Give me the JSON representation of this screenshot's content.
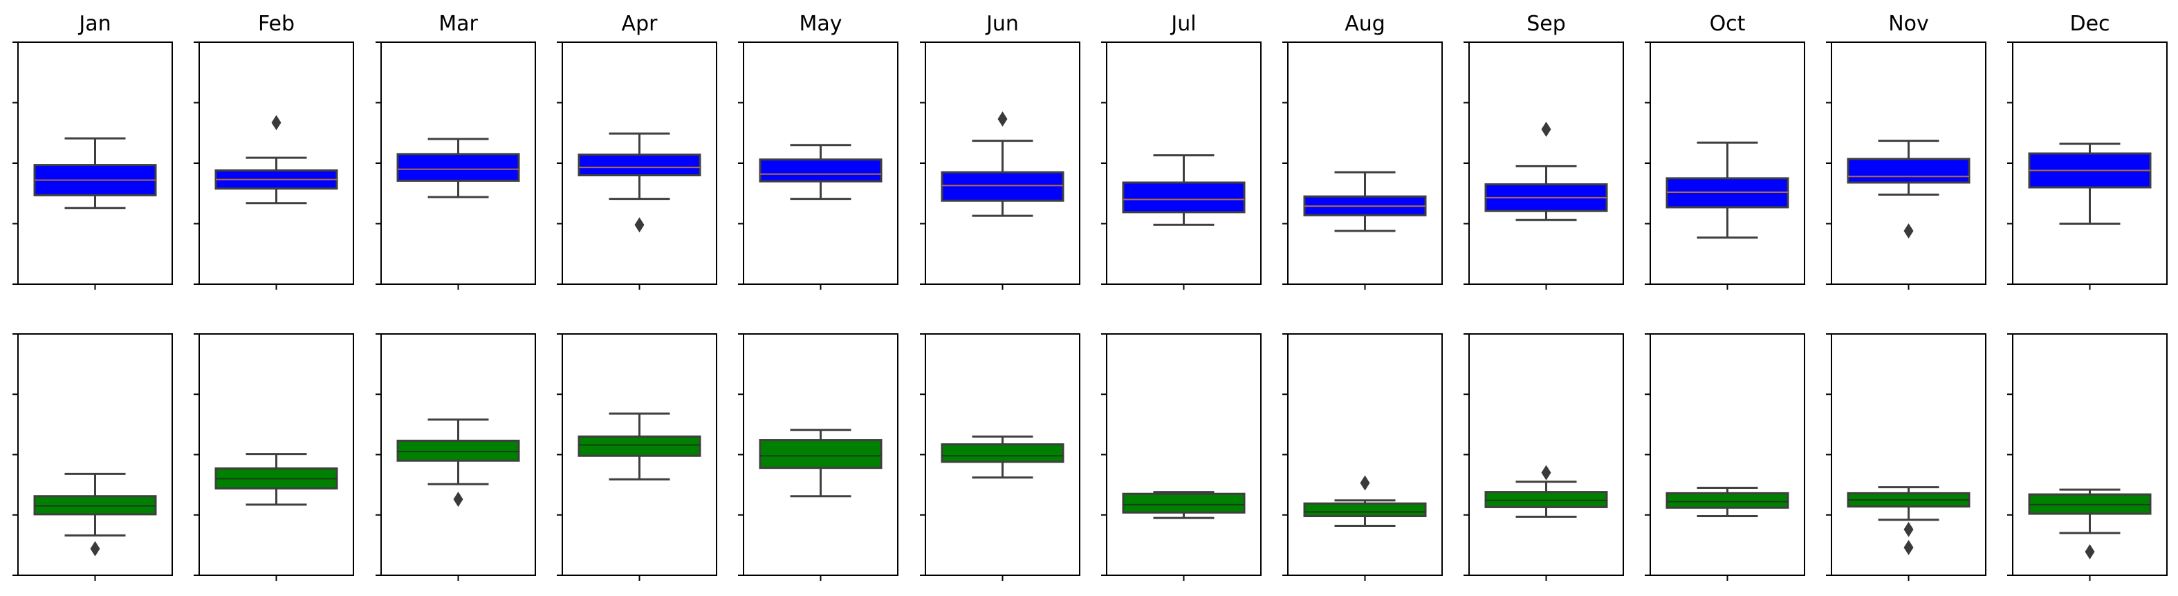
{
  "chart_data": {
    "type": "box",
    "layout": "2 rows x 12 columns (one column per month)",
    "months": [
      "Jan",
      "Feb",
      "Mar",
      "Apr",
      "May",
      "Jun",
      "Jul",
      "Aug",
      "Sep",
      "Oct",
      "Nov",
      "Dec"
    ],
    "y_tick_labels": "none",
    "x_tick_labels": "none",
    "ylim": [
      0,
      4
    ],
    "rows": [
      {
        "color": "#0000ff",
        "median_color": "#b06d3e",
        "boxes": [
          {
            "month": "Jan",
            "whisker_low": 1.26,
            "q1": 1.47,
            "median": 1.72,
            "q3": 1.97,
            "whisker_high": 2.41,
            "outliers": []
          },
          {
            "month": "Feb",
            "whisker_low": 1.34,
            "q1": 1.58,
            "median": 1.73,
            "q3": 1.88,
            "whisker_high": 2.09,
            "outliers": [
              2.67
            ]
          },
          {
            "month": "Mar",
            "whisker_low": 1.44,
            "q1": 1.71,
            "median": 1.9,
            "q3": 2.15,
            "whisker_high": 2.4,
            "outliers": []
          },
          {
            "month": "Apr",
            "whisker_low": 1.41,
            "q1": 1.8,
            "median": 1.93,
            "q3": 2.14,
            "whisker_high": 2.49,
            "outliers": [
              0.98
            ]
          },
          {
            "month": "May",
            "whisker_low": 1.41,
            "q1": 1.7,
            "median": 1.82,
            "q3": 2.06,
            "whisker_high": 2.3,
            "outliers": []
          },
          {
            "month": "Jun",
            "whisker_low": 1.13,
            "q1": 1.38,
            "median": 1.63,
            "q3": 1.85,
            "whisker_high": 2.37,
            "outliers": [
              2.73
            ]
          },
          {
            "month": "Jul",
            "whisker_low": 0.98,
            "q1": 1.19,
            "median": 1.4,
            "q3": 1.68,
            "whisker_high": 2.13,
            "outliers": []
          },
          {
            "month": "Aug",
            "whisker_low": 0.88,
            "q1": 1.14,
            "median": 1.29,
            "q3": 1.45,
            "whisker_high": 1.85,
            "outliers": []
          },
          {
            "month": "Sep",
            "whisker_low": 1.06,
            "q1": 1.21,
            "median": 1.43,
            "q3": 1.65,
            "whisker_high": 1.95,
            "outliers": [
              2.56
            ]
          },
          {
            "month": "Oct",
            "whisker_low": 0.77,
            "q1": 1.27,
            "median": 1.52,
            "q3": 1.75,
            "whisker_high": 2.34,
            "outliers": []
          },
          {
            "month": "Nov",
            "whisker_low": 1.48,
            "q1": 1.68,
            "median": 1.78,
            "q3": 2.07,
            "whisker_high": 2.37,
            "outliers": [
              0.88
            ]
          },
          {
            "month": "Dec",
            "whisker_low": 1.0,
            "q1": 1.6,
            "median": 1.88,
            "q3": 2.16,
            "whisker_high": 2.32,
            "outliers": []
          }
        ]
      },
      {
        "color": "#008000",
        "median_color": "#1a3d1a",
        "boxes": [
          {
            "month": "Jan",
            "whisker_low": 0.66,
            "q1": 1.01,
            "median": 1.15,
            "q3": 1.31,
            "whisker_high": 1.68,
            "outliers": [
              0.44
            ]
          },
          {
            "month": "Feb",
            "whisker_low": 1.17,
            "q1": 1.44,
            "median": 1.6,
            "q3": 1.77,
            "whisker_high": 2.01,
            "outliers": []
          },
          {
            "month": "Mar",
            "whisker_low": 1.51,
            "q1": 1.9,
            "median": 2.05,
            "q3": 2.23,
            "whisker_high": 2.58,
            "outliers": [
              1.26
            ]
          },
          {
            "month": "Apr",
            "whisker_low": 1.59,
            "q1": 1.98,
            "median": 2.16,
            "q3": 2.3,
            "whisker_high": 2.68,
            "outliers": []
          },
          {
            "month": "May",
            "whisker_low": 1.31,
            "q1": 1.78,
            "median": 1.98,
            "q3": 2.24,
            "whisker_high": 2.41,
            "outliers": []
          },
          {
            "month": "Jun",
            "whisker_low": 1.62,
            "q1": 1.88,
            "median": 1.98,
            "q3": 2.17,
            "whisker_high": 2.3,
            "outliers": []
          },
          {
            "month": "Jul",
            "whisker_low": 0.95,
            "q1": 1.04,
            "median": 1.17,
            "q3": 1.35,
            "whisker_high": 1.38,
            "outliers": []
          },
          {
            "month": "Aug",
            "whisker_low": 0.82,
            "q1": 0.98,
            "median": 1.05,
            "q3": 1.19,
            "whisker_high": 1.24,
            "outliers": [
              1.53
            ]
          },
          {
            "month": "Sep",
            "whisker_low": 0.97,
            "q1": 1.13,
            "median": 1.24,
            "q3": 1.38,
            "whisker_high": 1.55,
            "outliers": [
              1.7
            ]
          },
          {
            "month": "Oct",
            "whisker_low": 0.98,
            "q1": 1.12,
            "median": 1.22,
            "q3": 1.36,
            "whisker_high": 1.45,
            "outliers": []
          },
          {
            "month": "Nov",
            "whisker_low": 0.92,
            "q1": 1.14,
            "median": 1.25,
            "q3": 1.36,
            "whisker_high": 1.46,
            "outliers": [
              0.76,
              0.46
            ]
          },
          {
            "month": "Dec",
            "whisker_low": 0.7,
            "q1": 1.02,
            "median": 1.17,
            "q3": 1.34,
            "whisker_high": 1.42,
            "outliers": [
              0.39
            ]
          }
        ]
      }
    ]
  }
}
